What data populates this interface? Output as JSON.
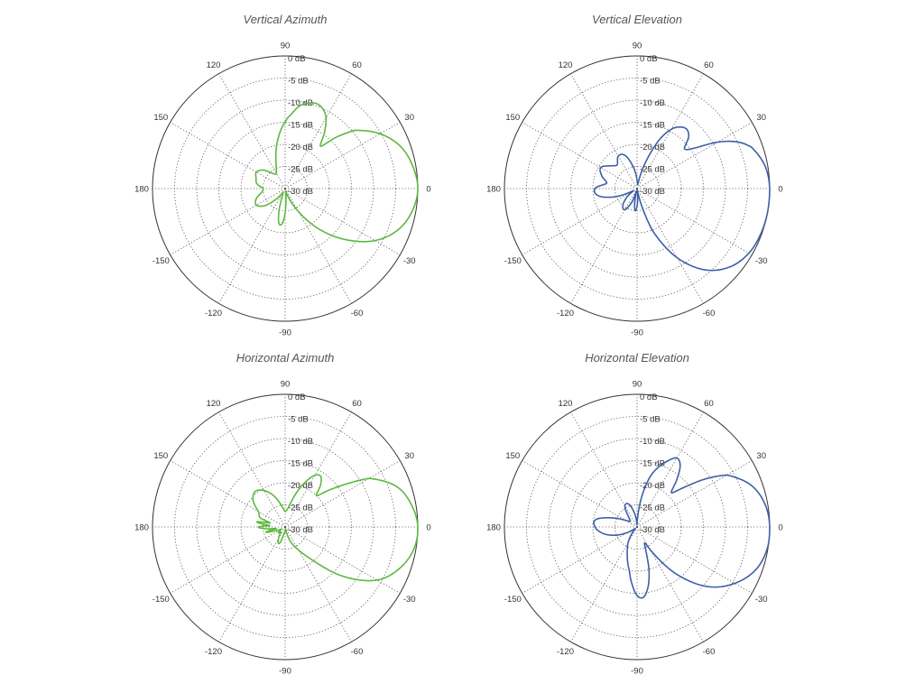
{
  "chart_data": [
    {
      "type": "polar",
      "title": "Vertical Azimuth",
      "radial_unit": "dB",
      "radial_range": [
        -30,
        0
      ],
      "radial_ticks": [
        "0 dB",
        "-5 dB",
        "-10 dB",
        "-15 dB",
        "-20 dB",
        "-25 dB",
        "-30 dB"
      ],
      "angle_ticks": [
        "0",
        "30",
        "60",
        "90",
        "120",
        "150",
        "180",
        "-150",
        "-120",
        "-90",
        "-60",
        "-30"
      ],
      "grid": true,
      "color": "#5cb83f",
      "series": [
        {
          "angles": [
            0,
            10,
            20,
            30,
            40,
            45,
            50,
            55,
            60,
            65,
            70,
            75,
            80,
            85,
            90,
            100,
            110,
            120,
            130,
            140,
            150,
            160,
            170,
            180,
            190,
            200,
            210,
            220,
            230,
            240,
            250,
            255,
            260,
            265,
            270,
            275,
            280,
            285,
            290,
            300,
            310,
            320,
            330,
            340,
            350
          ],
          "values": [
            0,
            -0.7,
            -2.2,
            -5.2,
            -9.5,
            -13.5,
            -17.5,
            -14.5,
            -11.5,
            -10,
            -9.5,
            -10,
            -11,
            -13,
            -15,
            -19.5,
            -24,
            -26,
            -25.5,
            -23.5,
            -22.5,
            -23,
            -23.5,
            -25,
            -24.5,
            -23,
            -22.5,
            -24,
            -27,
            -29,
            -28,
            -24.5,
            -22,
            -22,
            -24.5,
            -28,
            -29.5,
            -29,
            -28,
            -24,
            -18,
            -12,
            -6.5,
            -2.8,
            -0.8
          ]
        }
      ]
    },
    {
      "type": "polar",
      "title": "Vertical Elevation",
      "radial_unit": "dB",
      "radial_range": [
        -30,
        0
      ],
      "radial_ticks": [
        "0 dB",
        "-5 dB",
        "-10 dB",
        "-15 dB",
        "-20 dB",
        "-25 dB",
        "-30 dB"
      ],
      "angle_ticks": [
        "0",
        "30",
        "60",
        "90",
        "120",
        "150",
        "180",
        "-150",
        "-120",
        "-90",
        "-60",
        "-30"
      ],
      "grid": true,
      "color": "#3d5fa8",
      "series": [
        {
          "angles": [
            0,
            10,
            20,
            25,
            30,
            35,
            40,
            45,
            50,
            55,
            60,
            65,
            70,
            75,
            80,
            90,
            100,
            110,
            120,
            130,
            140,
            150,
            160,
            170,
            180,
            190,
            200,
            210,
            220,
            230,
            240,
            250,
            255,
            260,
            265,
            270,
            275,
            280,
            285,
            290,
            300,
            310,
            320,
            330,
            340,
            350
          ],
          "values": [
            0,
            -0.6,
            -2.5,
            -5,
            -9,
            -14,
            -16,
            -13.5,
            -12.5,
            -13,
            -14.5,
            -17.5,
            -22,
            -26,
            -29,
            -28,
            -25,
            -22,
            -21.5,
            -23,
            -22,
            -20.5,
            -21.5,
            -23,
            -20.5,
            -21,
            -24.5,
            -29,
            -27,
            -25,
            -24.5,
            -27,
            -29.5,
            -27,
            -25,
            -26,
            -28.5,
            -29.5,
            -26,
            -20,
            -12,
            -6,
            -2.5,
            -0.8,
            -0.2,
            0
          ]
        }
      ]
    },
    {
      "type": "polar",
      "title": "Horizontal Azimuth",
      "radial_unit": "dB",
      "radial_range": [
        -30,
        0
      ],
      "radial_ticks": [
        "0 dB",
        "-5 dB",
        "-10 dB",
        "-15 dB",
        "-20 dB",
        "-25 dB",
        "-30 dB"
      ],
      "angle_ticks": [
        "0",
        "30",
        "60",
        "90",
        "120",
        "150",
        "180",
        "-150",
        "-120",
        "-90",
        "-60",
        "-30"
      ],
      "grid": true,
      "color": "#5cb83f",
      "series": [
        {
          "angles": [
            0,
            10,
            20,
            30,
            35,
            40,
            45,
            50,
            55,
            60,
            65,
            70,
            75,
            80,
            90,
            100,
            110,
            120,
            130,
            140,
            150,
            160,
            165,
            170,
            175,
            180,
            185,
            190,
            195,
            200,
            210,
            220,
            230,
            240,
            250,
            260,
            270,
            280,
            290,
            300,
            310,
            320,
            330,
            340,
            350
          ],
          "values": [
            0,
            -1,
            -3.2,
            -8,
            -13,
            -17,
            -20,
            -17.5,
            -16,
            -16.5,
            -18.5,
            -21,
            -23.5,
            -25.5,
            -26.5,
            -25,
            -22.5,
            -20.5,
            -19.5,
            -20.5,
            -23,
            -24,
            -26.5,
            -23.5,
            -26.5,
            -24,
            -25.5,
            -28,
            -25.5,
            -27.5,
            -29,
            -28,
            -28.5,
            -27,
            -26,
            -28.5,
            -29,
            -29.5,
            -26.5,
            -24,
            -20,
            -12.5,
            -6,
            -2.5,
            -0.5
          ]
        }
      ]
    },
    {
      "type": "polar",
      "title": "Horizontal Elevation",
      "radial_unit": "dB",
      "radial_range": [
        -30,
        0
      ],
      "radial_ticks": [
        "0 dB",
        "-5 dB",
        "-10 dB",
        "-15 dB",
        "-20 dB",
        "-25 dB",
        "-30 dB"
      ],
      "angle_ticks": [
        "0",
        "30",
        "60",
        "90",
        "120",
        "150",
        "180",
        "-150",
        "-120",
        "-90",
        "-60",
        "-30"
      ],
      "grid": true,
      "color": "#3d5fa8",
      "series": [
        {
          "angles": [
            0,
            10,
            20,
            30,
            35,
            40,
            45,
            50,
            55,
            60,
            65,
            70,
            75,
            80,
            85,
            90,
            100,
            110,
            120,
            130,
            140,
            150,
            160,
            170,
            180,
            190,
            200,
            210,
            220,
            230,
            240,
            250,
            260,
            265,
            270,
            275,
            280,
            285,
            290,
            295,
            300,
            310,
            320,
            330,
            340,
            350
          ],
          "values": [
            0,
            -0.6,
            -2.5,
            -6.5,
            -11,
            -16,
            -19,
            -16,
            -13,
            -12,
            -13.5,
            -15.5,
            -18,
            -22,
            -26.5,
            -29.5,
            -27,
            -24.5,
            -24.5,
            -27,
            -28,
            -27,
            -24,
            -20.5,
            -20.5,
            -22,
            -24.5,
            -27.5,
            -29.5,
            -28.5,
            -26,
            -23.5,
            -20,
            -17,
            -14.5,
            -14,
            -16,
            -19.5,
            -24,
            -26,
            -24,
            -16,
            -9,
            -4.5,
            -1.5,
            -0.2
          ]
        }
      ]
    }
  ]
}
